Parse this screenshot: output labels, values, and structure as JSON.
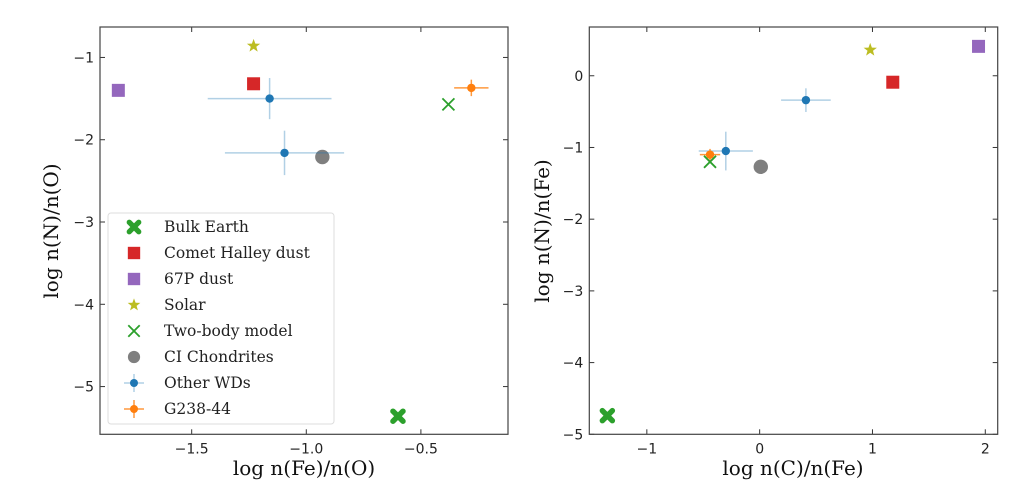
{
  "chart_data": [
    {
      "type": "scatter",
      "xlabel": "log n(Fe)/n(O)",
      "ylabel": "log n(N)/n(O)",
      "xlim": [
        -1.9,
        -0.12
      ],
      "ylim": [
        -5.58,
        -0.63
      ],
      "xticks": [
        -1.5,
        -1.0,
        -0.5
      ],
      "xtick_labels": [
        "−1.5",
        "−1.0",
        "−0.5"
      ],
      "yticks": [
        -1,
        -2,
        -3,
        -4,
        -5
      ],
      "ytick_labels": [
        "−1",
        "−2",
        "−3",
        "−4",
        "−5"
      ],
      "grid": false,
      "legend": "lower-left",
      "series": [
        {
          "name": "Bulk Earth",
          "marker": "X-filled",
          "color": "#2ca02c",
          "points": [
            {
              "x": -0.6,
              "y": -5.36
            }
          ]
        },
        {
          "name": "Comet Halley dust",
          "marker": "square",
          "color": "#d62728",
          "points": [
            {
              "x": -1.23,
              "y": -1.32
            }
          ]
        },
        {
          "name": "67P dust",
          "marker": "square",
          "color": "#9467bd",
          "points": [
            {
              "x": -1.82,
              "y": -1.4
            }
          ]
        },
        {
          "name": "Solar",
          "marker": "star",
          "color": "#bcbd22",
          "points": [
            {
              "x": -1.23,
              "y": -0.86
            }
          ]
        },
        {
          "name": "Two-body model",
          "marker": "x",
          "color": "#2ca02c",
          "points": [
            {
              "x": -0.38,
              "y": -1.57
            }
          ]
        },
        {
          "name": "CI Chondrites",
          "marker": "circle-large",
          "color": "#7f7f7f",
          "points": [
            {
              "x": -0.93,
              "y": -2.21
            }
          ]
        },
        {
          "name": "Other WDs",
          "marker": "circle-errorbar",
          "color": "#1f77b4",
          "points": [
            {
              "x": -1.16,
              "y": -1.5,
              "xerr": 0.27,
              "yerr": 0.25
            },
            {
              "x": -1.095,
              "y": -2.16,
              "xerr": 0.26,
              "yerr": 0.27
            }
          ]
        },
        {
          "name": "G238-44",
          "marker": "circle-errorbar",
          "color": "#ff7f0e",
          "points": [
            {
              "x": -0.28,
              "y": -1.37,
              "xerr": 0.075,
              "yerr": 0.1
            }
          ]
        }
      ]
    },
    {
      "type": "scatter",
      "xlabel": "log n(C)/n(Fe)",
      "ylabel": "log n(N)/n(Fe)",
      "xlim": [
        -1.51,
        2.11
      ],
      "ylim": [
        -5.0,
        0.68
      ],
      "xticks": [
        -1,
        0,
        1,
        2
      ],
      "xtick_labels": [
        "−1",
        "0",
        "1",
        "2"
      ],
      "yticks": [
        0,
        -1,
        -2,
        -3,
        -4,
        -5
      ],
      "ytick_labels": [
        "0",
        "−1",
        "−2",
        "−3",
        "−4",
        "−5"
      ],
      "grid": false,
      "legend": "none",
      "series": [
        {
          "name": "Bulk Earth",
          "marker": "X-filled",
          "color": "#2ca02c",
          "points": [
            {
              "x": -1.35,
              "y": -4.74
            }
          ]
        },
        {
          "name": "Comet Halley dust",
          "marker": "square",
          "color": "#d62728",
          "points": [
            {
              "x": 1.18,
              "y": -0.09
            }
          ]
        },
        {
          "name": "67P dust",
          "marker": "square",
          "color": "#9467bd",
          "points": [
            {
              "x": 1.94,
              "y": 0.41
            }
          ]
        },
        {
          "name": "Solar",
          "marker": "star",
          "color": "#bcbd22",
          "points": [
            {
              "x": 0.98,
              "y": 0.36
            }
          ]
        },
        {
          "name": "CI Chondrites",
          "marker": "circle-large",
          "color": "#7f7f7f",
          "points": [
            {
              "x": 0.01,
              "y": -1.27
            }
          ]
        },
        {
          "name": "Other WDs",
          "marker": "circle-errorbar",
          "color": "#1f77b4",
          "points": [
            {
              "x": 0.41,
              "y": -0.34,
              "xerr": 0.22,
              "yerr": 0.165
            },
            {
              "x": -0.3,
              "y": -1.05,
              "xerr": 0.24,
              "yerr": 0.27
            }
          ]
        },
        {
          "name": "G238-44",
          "marker": "circle-errorbar",
          "color": "#ff7f0e",
          "points": [
            {
              "x": -0.44,
              "y": -1.1,
              "xerr": 0.09,
              "yerr": 0.08
            }
          ]
        },
        {
          "name": "Two-body model",
          "marker": "x",
          "color": "#2ca02c",
          "points": [
            {
              "x": -0.44,
              "y": -1.2
            }
          ]
        }
      ]
    }
  ]
}
